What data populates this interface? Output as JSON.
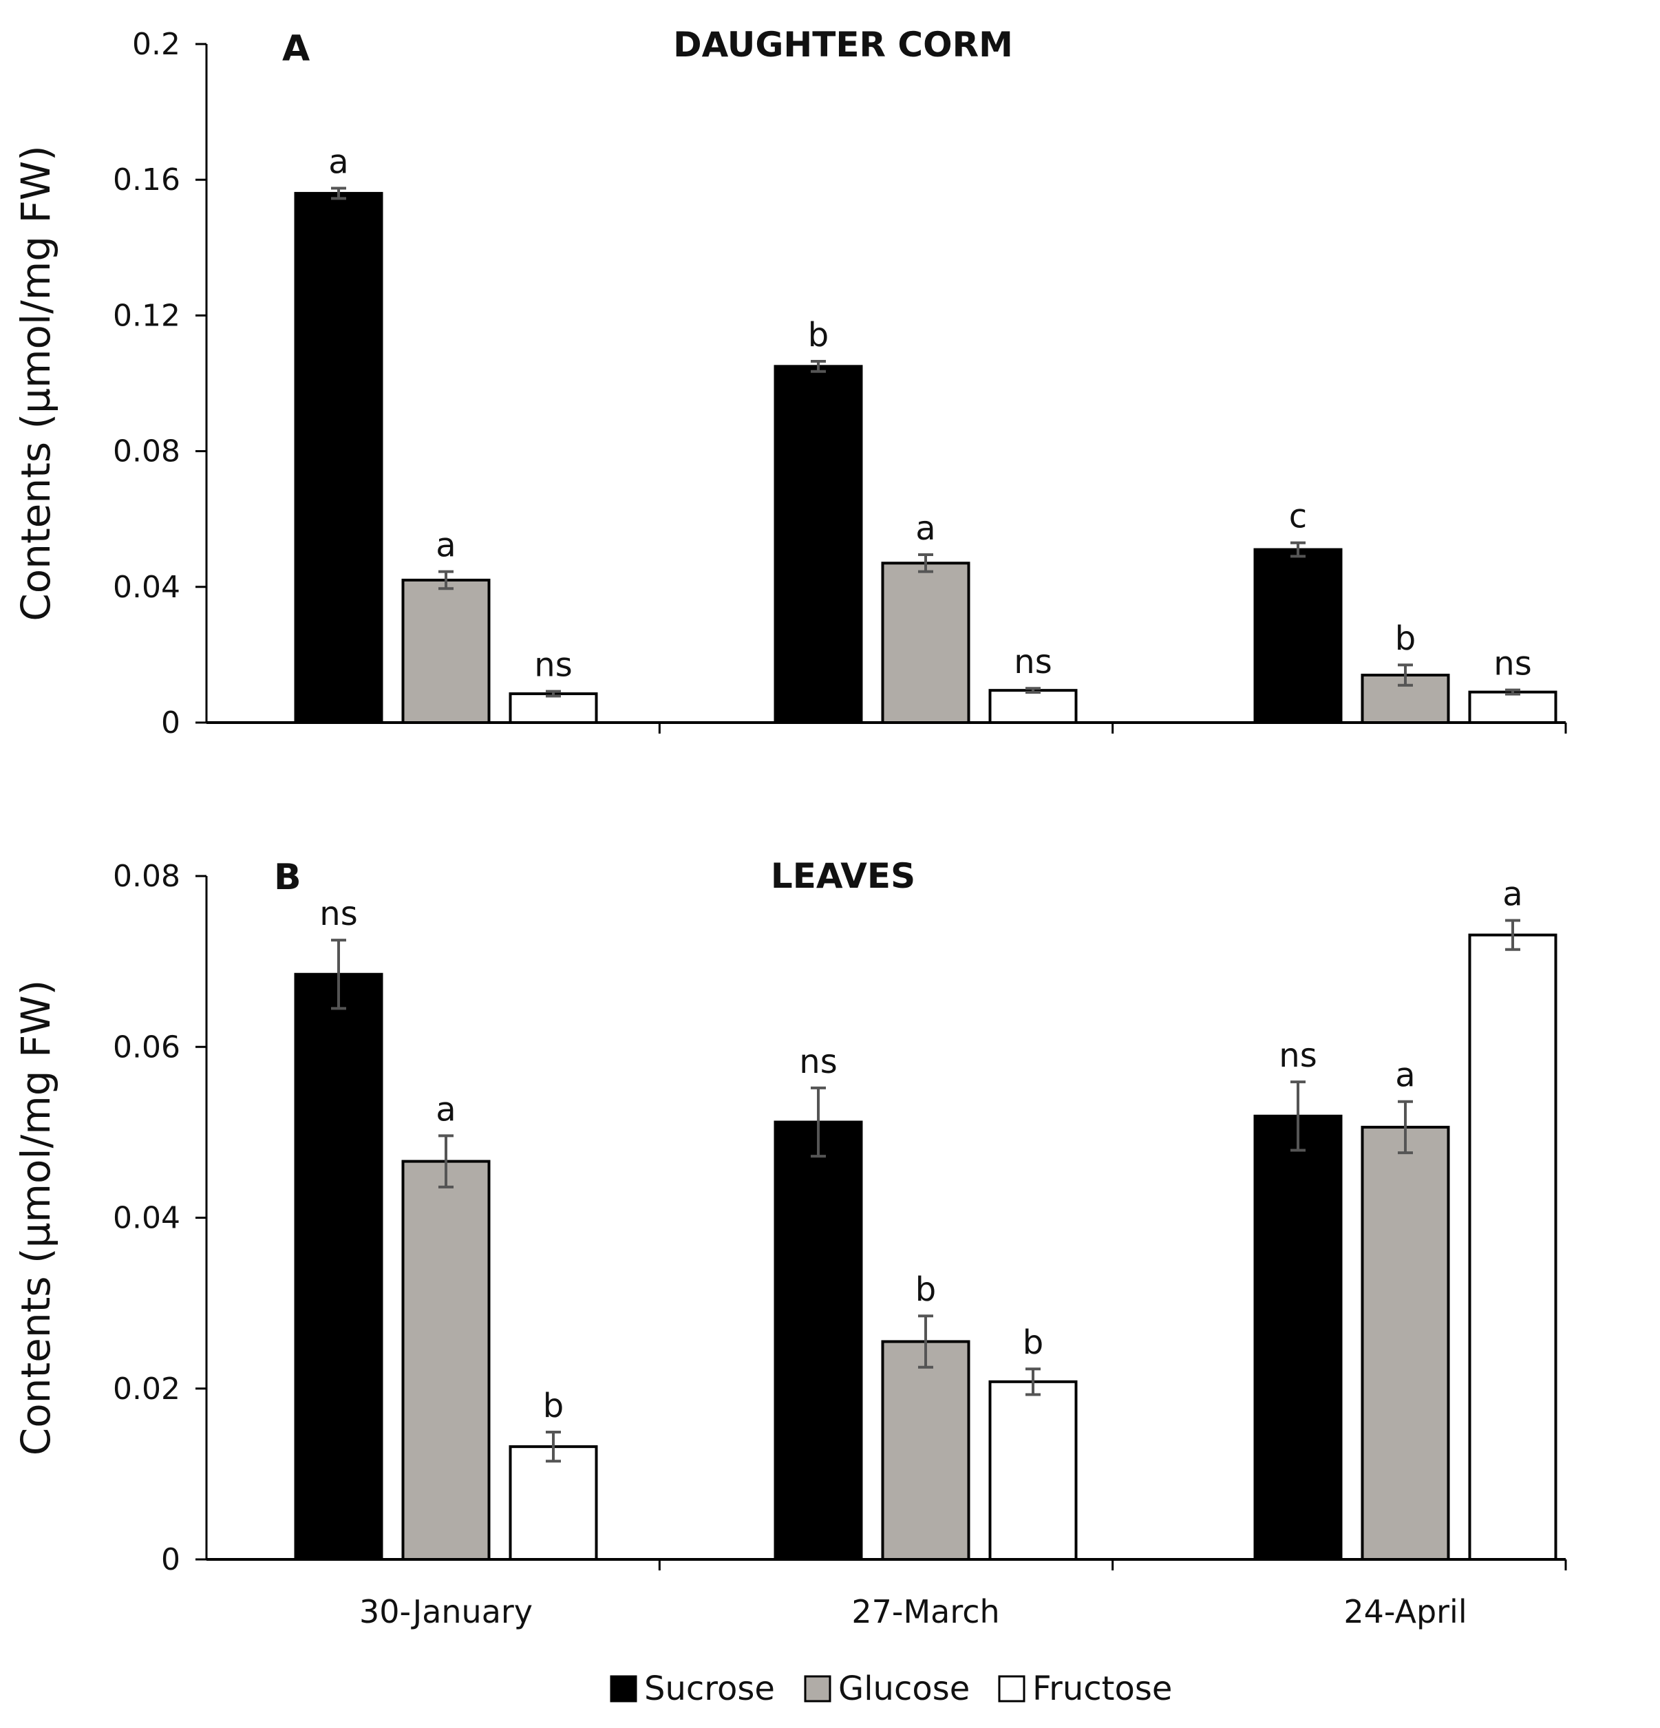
{
  "chart_data": [
    {
      "type": "bar",
      "panel": "A",
      "title": "DAUGHTER CORM",
      "ylabel": "Contents (µmol/mg FW)",
      "xlabel": "",
      "ylim": [
        0,
        0.2
      ],
      "yticks": [
        0,
        0.04,
        0.08,
        0.12,
        0.16,
        0.2
      ],
      "ytick_labels": [
        "0",
        "0.04",
        "0.08",
        "0.12",
        "0.16",
        "0.2"
      ],
      "categories": [
        "30-January",
        "27-March",
        "24-April"
      ],
      "show_category_labels": false,
      "series": [
        {
          "name": "Sucrose",
          "values": [
            0.156,
            0.105,
            0.051
          ],
          "errors": [
            0.0015,
            0.0015,
            0.002
          ],
          "labels": [
            "a",
            "b",
            "c"
          ]
        },
        {
          "name": "Glucose",
          "values": [
            0.042,
            0.047,
            0.014
          ],
          "errors": [
            0.0025,
            0.0025,
            0.003
          ],
          "labels": [
            "a",
            "a",
            "b"
          ]
        },
        {
          "name": "Fructose",
          "values": [
            0.0085,
            0.0095,
            0.009
          ],
          "errors": [
            0.0007,
            0.0006,
            0.0006
          ],
          "labels": [
            "ns",
            "ns",
            "ns"
          ]
        }
      ]
    },
    {
      "type": "bar",
      "panel": "B",
      "title": "LEAVES",
      "ylabel": "Contents (µmol/mg FW)",
      "xlabel": "",
      "ylim": [
        0,
        0.08
      ],
      "yticks": [
        0,
        0.02,
        0.04,
        0.06,
        0.08
      ],
      "ytick_labels": [
        "0",
        "0.02",
        "0.04",
        "0.06",
        "0.08"
      ],
      "categories": [
        "30-January",
        "27-March",
        "24-April"
      ],
      "show_category_labels": true,
      "series": [
        {
          "name": "Sucrose",
          "values": [
            0.0685,
            0.0512,
            0.0519
          ],
          "errors": [
            0.004,
            0.004,
            0.004
          ],
          "labels": [
            "ns",
            "ns",
            "ns"
          ]
        },
        {
          "name": "Glucose",
          "values": [
            0.0466,
            0.0255,
            0.0506
          ],
          "errors": [
            0.003,
            0.003,
            0.003
          ],
          "labels": [
            "a",
            "b",
            "a"
          ]
        },
        {
          "name": "Fructose",
          "values": [
            0.0132,
            0.0208,
            0.0731
          ],
          "errors": [
            0.0017,
            0.0015,
            0.0017
          ],
          "labels": [
            "b",
            "b",
            "a"
          ]
        }
      ]
    }
  ],
  "legend": {
    "placement": "bottom-center",
    "items": [
      {
        "name": "Sucrose",
        "color": "#000000"
      },
      {
        "name": "Glucose",
        "color": "#b0aca7"
      },
      {
        "name": "Fructose",
        "color": "#ffffff"
      }
    ]
  },
  "colors": {
    "Sucrose": "#000000",
    "Glucose": "#b0aca7",
    "Fructose": "#ffffff",
    "error_bar": "#555555",
    "axis": "#000000"
  }
}
